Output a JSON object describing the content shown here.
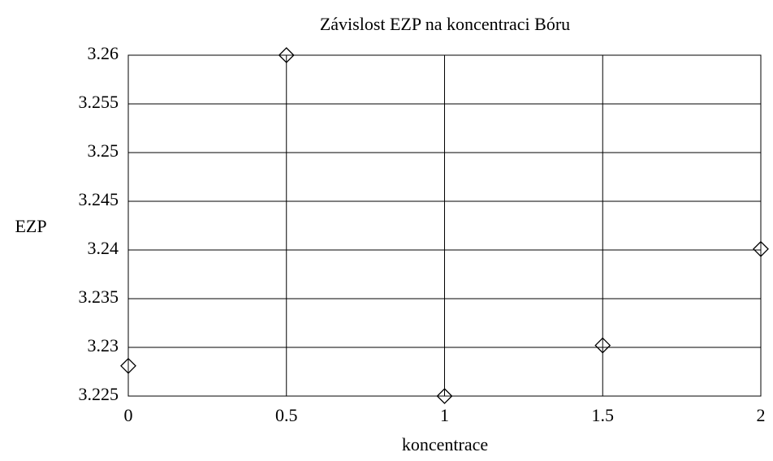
{
  "chart_data": {
    "type": "scatter",
    "title": "Závislost EZP na koncentraci Bóru",
    "x_label": "koncentrace",
    "y_label": "EZP",
    "x": [
      0,
      0.5,
      1,
      1.5,
      2
    ],
    "values": [
      3.2281,
      3.26,
      3.225,
      3.2302,
      3.2401
    ],
    "color": "#000000",
    "xlim": [
      0,
      2
    ],
    "ylim": [
      3.225,
      3.26
    ],
    "xticks": [
      0,
      0.5,
      1,
      1.5,
      2
    ],
    "yticks": [
      3.225,
      3.23,
      3.235,
      3.24,
      3.245,
      3.25,
      3.255,
      3.26
    ],
    "grid": true
  }
}
